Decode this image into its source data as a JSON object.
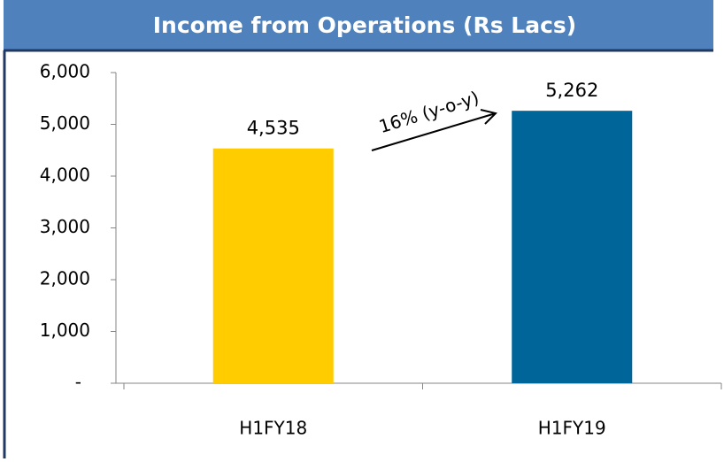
{
  "chart_data": {
    "type": "bar",
    "title": "Income from Operations (Rs Lacs)",
    "categories": [
      "H1FY18",
      "H1FY19"
    ],
    "values": [
      4535,
      5262
    ],
    "value_labels": [
      "4,535",
      "5,262"
    ],
    "colors": [
      "#ffcc00",
      "#006699"
    ],
    "ylim": [
      0,
      6000
    ],
    "yticks": [
      {
        "value": 0,
        "label": "-"
      },
      {
        "value": 1000,
        "label": "1,000"
      },
      {
        "value": 2000,
        "label": "2,000"
      },
      {
        "value": 3000,
        "label": "3,000"
      },
      {
        "value": 4000,
        "label": "4,000"
      },
      {
        "value": 5000,
        "label": "5,000"
      },
      {
        "value": 6000,
        "label": "6,000"
      }
    ],
    "grid": false,
    "annotation": "16% (y-o-y)"
  }
}
